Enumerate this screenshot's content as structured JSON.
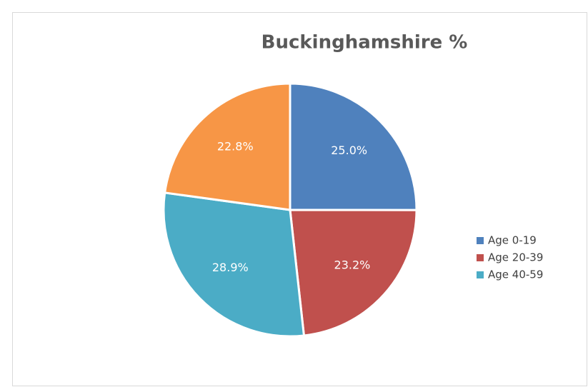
{
  "chart_data": {
    "type": "pie",
    "title": "Buckinghamshire %",
    "categories": [
      "Age 0-19",
      "Age 20-39",
      "Age 40-59",
      null
    ],
    "values": [
      25.0,
      23.2,
      28.9,
      22.8
    ],
    "value_labels": [
      "25.0%",
      "23.2%",
      "28.9%",
      "22.8%"
    ],
    "colors": [
      "#4f81bd",
      "#c0504d",
      "#4bacc6",
      "#f79646"
    ],
    "legend": "right"
  }
}
